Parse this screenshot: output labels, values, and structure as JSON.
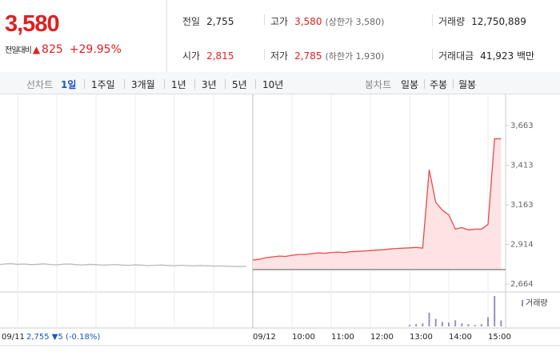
{
  "quote": {
    "price": "3,580",
    "change_label": "전일대비",
    "change": "825",
    "change_rate": "+29.95%"
  },
  "stats": [
    [
      {
        "label": "전일",
        "value": "2,755"
      },
      {
        "label": "고가",
        "value": "3,580",
        "note": "(상한가 3,580)"
      },
      {
        "label": "거래량",
        "value": "12,750,889"
      }
    ],
    [
      {
        "label": "시가",
        "value": "2,815"
      },
      {
        "label": "저가",
        "value": "2,785",
        "note": "(하한가 1,930)"
      },
      {
        "label": "거래대금",
        "value": "41,923 백만"
      }
    ]
  ],
  "tabs": {
    "line_label": "선차트",
    "line_periods": [
      "1일",
      "1주일",
      "3개월",
      "1년",
      "3년",
      "5년",
      "10년"
    ],
    "selected": 0,
    "candle_label": "봉차트",
    "candle_periods": [
      "일봉",
      "주봉",
      "월봉"
    ]
  },
  "prev_day_summary": "2,755 ▼5 (-0.18%)",
  "chart_data": {
    "type": "line",
    "categories": [
      "09/11",
      null,
      null,
      null,
      null,
      null,
      null,
      null,
      null,
      null,
      null,
      null,
      null,
      null,
      null,
      null,
      null,
      null,
      null,
      null,
      null,
      null,
      null,
      null,
      null,
      null,
      null,
      null,
      null,
      null,
      null,
      null,
      null,
      null,
      null,
      null,
      null,
      null,
      null,
      "09/12",
      null,
      null,
      null,
      null,
      null,
      "10:00",
      null,
      null,
      null,
      null,
      null,
      "11:00",
      null,
      null,
      null,
      null,
      null,
      "12:00",
      null,
      null,
      null,
      null,
      null,
      "13:00",
      null,
      null,
      null,
      null,
      null,
      "14:00",
      null,
      null,
      null,
      null,
      null,
      "15:00",
      null,
      null
    ],
    "series": [
      {
        "color": "#b9b9b9",
        "values": [
          2785,
          2790,
          2792,
          2788,
          2790,
          2786,
          2788,
          2791,
          2787,
          2785,
          2789,
          2790,
          2786,
          2784,
          2788,
          2786,
          2783,
          2785,
          2787,
          2784,
          2782,
          2785,
          2783,
          2780,
          2782,
          2784,
          2781,
          2779,
          2782,
          2780,
          2778,
          2781,
          2779,
          2777,
          2778,
          2776,
          2775,
          2774,
          2775,
          null,
          null,
          null,
          null,
          null,
          null,
          null,
          null,
          null,
          null,
          null,
          null,
          null,
          null,
          null,
          null,
          null,
          null,
          null,
          null,
          null,
          null,
          null,
          null,
          null,
          null,
          null,
          null,
          null,
          null,
          null,
          null,
          null,
          null,
          null,
          null,
          null,
          null,
          null
        ]
      },
      {
        "color": "#e94b4b",
        "values": [
          null,
          null,
          null,
          null,
          null,
          null,
          null,
          null,
          null,
          null,
          null,
          null,
          null,
          null,
          null,
          null,
          null,
          null,
          null,
          null,
          null,
          null,
          null,
          null,
          null,
          null,
          null,
          null,
          null,
          null,
          null,
          null,
          null,
          null,
          null,
          null,
          null,
          null,
          null,
          2815,
          2820,
          2830,
          2835,
          2840,
          2838,
          2845,
          2850,
          2850,
          2855,
          2860,
          2858,
          2862,
          2865,
          2862,
          2868,
          2870,
          2872,
          2875,
          2878,
          2880,
          2885,
          2888,
          2890,
          2892,
          2895,
          2890,
          3385,
          3180,
          3130,
          3100,
          3010,
          3020,
          3005,
          3010,
          3010,
          3040,
          3580,
          3580
        ]
      }
    ],
    "volume": {
      "name": "거래량",
      "color": "#9b8cc9",
      "values": [
        null,
        null,
        null,
        null,
        null,
        null,
        null,
        null,
        null,
        null,
        null,
        null,
        null,
        null,
        null,
        null,
        null,
        null,
        null,
        null,
        null,
        null,
        null,
        null,
        null,
        null,
        null,
        null,
        null,
        null,
        null,
        null,
        null,
        null,
        null,
        null,
        null,
        null,
        null,
        null,
        null,
        null,
        null,
        null,
        null,
        null,
        null,
        null,
        null,
        null,
        null,
        null,
        null,
        null,
        null,
        null,
        null,
        null,
        null,
        null,
        null,
        null,
        null,
        2,
        3,
        4,
        18,
        10,
        6,
        5,
        8,
        4,
        3,
        2,
        3,
        12,
        40,
        8
      ]
    },
    "reference_line": 2755,
    "ylim": [
      2664,
      3663
    ],
    "yticks": [
      {
        "value": 2664,
        "label": "2,664"
      },
      {
        "value": 2914,
        "label": "2,914"
      },
      {
        "value": 3163,
        "label": "3,163"
      },
      {
        "value": 3413,
        "label": "3,413"
      },
      {
        "value": 3663,
        "label": "3,663"
      }
    ]
  }
}
